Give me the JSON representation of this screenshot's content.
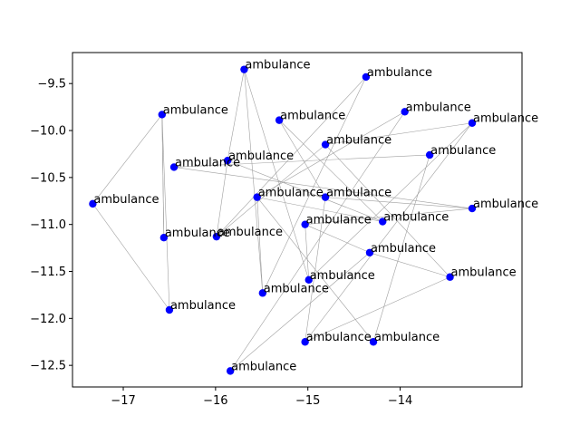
{
  "chart_data": {
    "type": "scatter",
    "title": "",
    "xlabel": "",
    "ylabel": "",
    "xlim": [
      -17.55,
      -12.68
    ],
    "ylim": [
      -12.73,
      -9.17
    ],
    "xticks": [
      -17,
      -16,
      -15,
      -14
    ],
    "yticks": [
      -9.5,
      -10.0,
      -10.5,
      -11.0,
      -11.5,
      -12.0,
      -12.5
    ],
    "xtick_labels": [
      "−17",
      "−16",
      "−15",
      "−14"
    ],
    "ytick_labels": [
      "−9.5",
      "−10.0",
      "−10.5",
      "−11.0",
      "−11.5",
      "−12.0",
      "−12.5"
    ],
    "grid": false,
    "point_color": "#0000ff",
    "edge_color": "#a0a0a0",
    "points": [
      {
        "x": -15.69,
        "y": -9.35,
        "label": "ambulance"
      },
      {
        "x": -14.37,
        "y": -9.43,
        "label": "ambulance"
      },
      {
        "x": -16.58,
        "y": -9.83,
        "label": "ambulance"
      },
      {
        "x": -13.95,
        "y": -9.8,
        "label": "ambulance"
      },
      {
        "x": -15.31,
        "y": -9.89,
        "label": "ambulance"
      },
      {
        "x": -13.22,
        "y": -9.92,
        "label": "ambulance"
      },
      {
        "x": -14.81,
        "y": -10.15,
        "label": "ambulance"
      },
      {
        "x": -13.68,
        "y": -10.26,
        "label": "ambulance"
      },
      {
        "x": -15.87,
        "y": -10.32,
        "label": "ambulance"
      },
      {
        "x": -16.45,
        "y": -10.39,
        "label": "ambulance"
      },
      {
        "x": -15.55,
        "y": -10.71,
        "label": "ambulance"
      },
      {
        "x": -14.81,
        "y": -10.71,
        "label": "ambulance"
      },
      {
        "x": -17.33,
        "y": -10.78,
        "label": "ambulance"
      },
      {
        "x": -13.22,
        "y": -10.83,
        "label": "ambulance"
      },
      {
        "x": -14.19,
        "y": -10.97,
        "label": "ambulance"
      },
      {
        "x": -15.03,
        "y": -11.0,
        "label": "ambulance"
      },
      {
        "x": -16.56,
        "y": -11.14,
        "label": "ambulance"
      },
      {
        "x": -15.99,
        "y": -11.13,
        "label": "ambulance"
      },
      {
        "x": -14.33,
        "y": -11.3,
        "label": "ambulance"
      },
      {
        "x": -13.46,
        "y": -11.56,
        "label": "ambulance"
      },
      {
        "x": -14.99,
        "y": -11.59,
        "label": "ambulance"
      },
      {
        "x": -15.49,
        "y": -11.73,
        "label": "ambulance"
      },
      {
        "x": -16.5,
        "y": -11.91,
        "label": "ambulance"
      },
      {
        "x": -15.03,
        "y": -12.25,
        "label": "ambulance"
      },
      {
        "x": -14.29,
        "y": -12.25,
        "label": "ambulance"
      },
      {
        "x": -15.84,
        "y": -12.56,
        "label": "ambulance"
      }
    ],
    "edges": [
      [
        2,
        16
      ],
      [
        2,
        22
      ],
      [
        2,
        12
      ],
      [
        9,
        7
      ],
      [
        9,
        13
      ],
      [
        0,
        21
      ],
      [
        0,
        20
      ],
      [
        1,
        21
      ],
      [
        1,
        17
      ],
      [
        3,
        10
      ],
      [
        3,
        25
      ],
      [
        4,
        11
      ],
      [
        4,
        14
      ],
      [
        5,
        6
      ],
      [
        5,
        23
      ],
      [
        6,
        19
      ],
      [
        6,
        17
      ],
      [
        7,
        24
      ],
      [
        8,
        17
      ],
      [
        8,
        14
      ],
      [
        10,
        14
      ],
      [
        10,
        24
      ],
      [
        11,
        13
      ],
      [
        12,
        22
      ],
      [
        15,
        13
      ],
      [
        15,
        20
      ],
      [
        16,
        2
      ],
      [
        18,
        19
      ],
      [
        18,
        25
      ],
      [
        19,
        23
      ],
      [
        20,
        5
      ],
      [
        21,
        10
      ],
      [
        11,
        23
      ],
      [
        15,
        18
      ],
      [
        8,
        0
      ]
    ]
  }
}
